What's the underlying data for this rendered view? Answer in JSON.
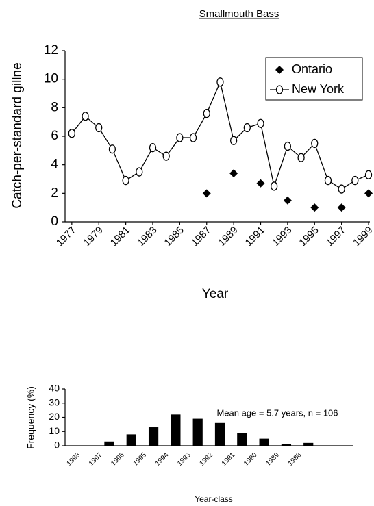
{
  "chart_data": [
    {
      "type": "line",
      "title": "Smallmouth Bass",
      "x_label": "Year",
      "y_label": "Catch-per-standard gillne",
      "x": [
        1977,
        1978,
        1979,
        1980,
        1981,
        1982,
        1983,
        1984,
        1985,
        1986,
        1987,
        1988,
        1989,
        1990,
        1991,
        1992,
        1993,
        1994,
        1995,
        1996,
        1997,
        1998,
        1999
      ],
      "xlim": [
        1976.5,
        1999.1
      ],
      "xticks": [
        1977,
        1979,
        1981,
        1983,
        1985,
        1987,
        1989,
        1991,
        1993,
        1995,
        1997,
        1999
      ],
      "ylim": [
        0,
        12
      ],
      "yticks": [
        0,
        2,
        4,
        6,
        8,
        10,
        12
      ],
      "legend": "upper right",
      "series": [
        {
          "name": "Ontario",
          "color": "#000000",
          "marker": "diamond",
          "line": false,
          "values": [
            null,
            null,
            null,
            null,
            null,
            null,
            null,
            null,
            null,
            null,
            2.0,
            null,
            3.4,
            null,
            2.7,
            null,
            1.5,
            null,
            1.0,
            null,
            1.0,
            null,
            2.0
          ]
        },
        {
          "name": "New York",
          "color": "#000000",
          "marker": "open-circle",
          "line": true,
          "values": [
            6.2,
            7.4,
            6.6,
            5.1,
            2.9,
            3.5,
            5.2,
            4.6,
            5.9,
            5.9,
            7.6,
            9.8,
            5.7,
            6.6,
            6.9,
            2.5,
            5.3,
            4.5,
            5.5,
            2.9,
            2.3,
            2.9,
            3.3
          ]
        }
      ]
    },
    {
      "type": "bar",
      "x_label": "Year-class",
      "y_label": "Frequency (%)",
      "annotation": "Mean age = 5.7 years, n = 106",
      "categories": [
        "1998",
        "1997",
        "1996",
        "1995",
        "1994",
        "1993",
        "1992",
        "1991",
        "1990",
        "1989",
        "1988",
        null,
        null
      ],
      "values": [
        0,
        3,
        8,
        13,
        22,
        19,
        16,
        9,
        5,
        1,
        2,
        null,
        null
      ],
      "color": "#000000",
      "ylim": [
        0,
        40
      ],
      "yticks": [
        0,
        10,
        20,
        30,
        40
      ]
    }
  ]
}
